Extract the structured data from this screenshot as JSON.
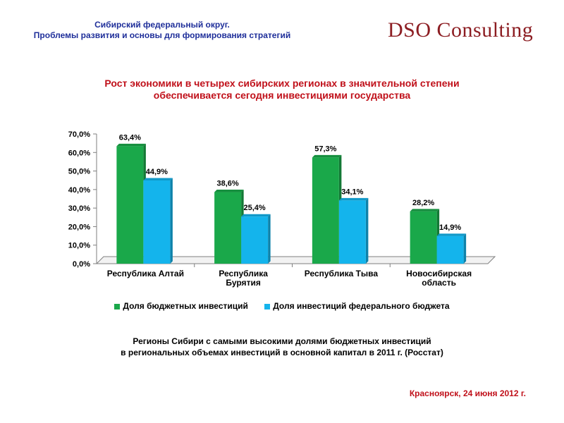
{
  "header": {
    "line1": "Сибирский федеральный округ.",
    "line2": "Проблемы развития и основы для формирования стратегий"
  },
  "logo": {
    "dso": "DSO",
    "consulting": "Consulting"
  },
  "title": {
    "line1": "Рост экономики в четырех сибирских регионах в значительной степени",
    "line2": "обеспечивается сегодня инвестициями государства"
  },
  "caption": {
    "line1": "Регионы Сибири с самыми высокими долями бюджетных инвестиций",
    "line2": "в региональных объемах инвестиций в основной капитал в 2011 г.  (Росстат)"
  },
  "footer": {
    "text": "Красноярск, 24 июня 2012 г."
  },
  "colors": {
    "green": "#1aa84a",
    "blue": "#14b4ec",
    "title_red": "#c0101a",
    "header_blue": "#1f2f9a",
    "logo": "#8c1d22"
  },
  "chart_data": {
    "type": "bar",
    "categories": [
      [
        "Республика Алтай"
      ],
      [
        "Республика",
        "Бурятия"
      ],
      [
        "Республика Тыва"
      ],
      [
        "Новосибирская",
        "область"
      ]
    ],
    "series": [
      {
        "name": "Доля бюджетных инвестиций",
        "values": [
          63.4,
          38.6,
          57.3,
          28.2
        ],
        "labels": [
          "63,4%",
          "38,6%",
          "57,3%",
          "28,2%"
        ],
        "color": "#1aa84a"
      },
      {
        "name": "Доля инвестиций федерального бюджета",
        "values": [
          44.9,
          25.4,
          34.1,
          14.9
        ],
        "labels": [
          "44,9%",
          "25,4%",
          "34,1%",
          "14,9%"
        ],
        "color": "#14b4ec"
      }
    ],
    "yticks": [
      "0,0%",
      "10,0%",
      "20,0%",
      "30,0%",
      "40,0%",
      "50,0%",
      "60,0%",
      "70,0%"
    ],
    "ylim": [
      0,
      70
    ],
    "grid": false,
    "legend": "bottom"
  }
}
